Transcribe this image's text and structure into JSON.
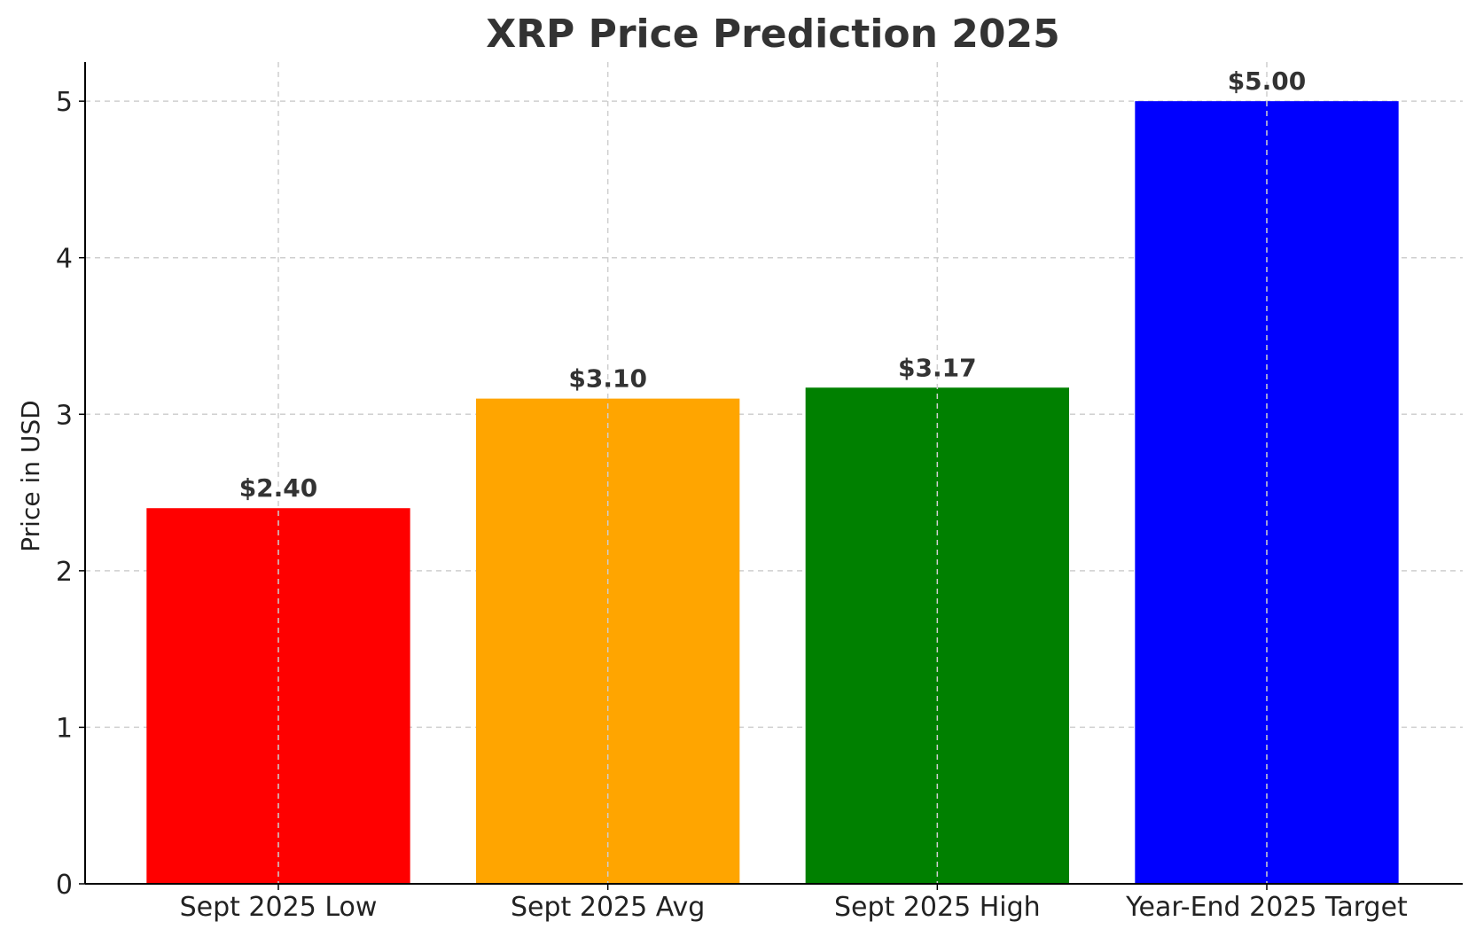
{
  "chart_data": {
    "type": "bar",
    "title": "XRP Price Prediction 2025",
    "xlabel": "",
    "ylabel": "Price in USD",
    "categories": [
      "Sept 2025 Low",
      "Sept 2025 Avg",
      "Sept 2025 High",
      "Year-End 2025 Target"
    ],
    "values": [
      2.4,
      3.1,
      3.17,
      5.0
    ],
    "value_labels": [
      "$2.40",
      "$3.10",
      "$3.17",
      "$5.00"
    ],
    "colors": [
      "#ff0000",
      "#ffa500",
      "#008000",
      "#0000ff"
    ],
    "ylim": [
      0,
      5.25
    ],
    "yticks": [
      0,
      1,
      2,
      3,
      4,
      5
    ],
    "ytick_labels": [
      "0",
      "1",
      "2",
      "3",
      "4",
      "5"
    ],
    "grid": true,
    "legend": "none"
  }
}
